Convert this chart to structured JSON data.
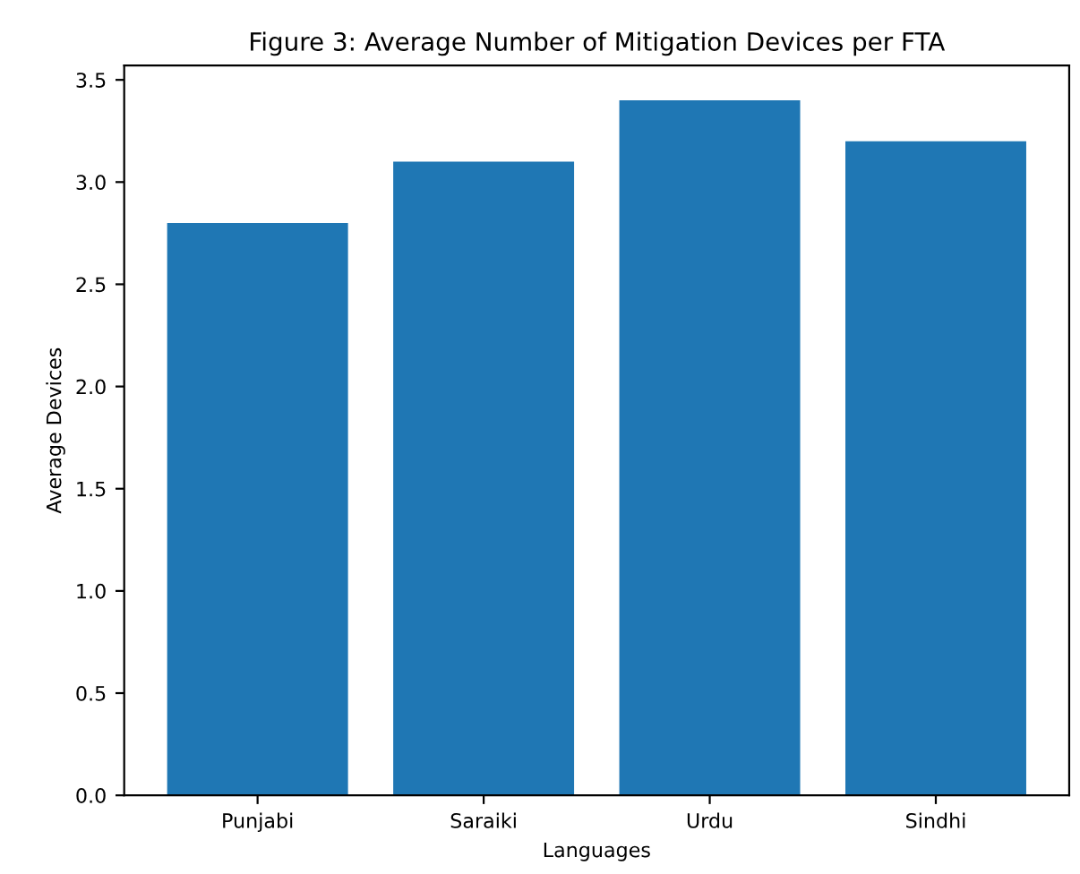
{
  "chart_data": {
    "type": "bar",
    "title": "Figure 3: Average Number of Mitigation Devices per FTA",
    "xlabel": "Languages",
    "ylabel": "Average Devices",
    "categories": [
      "Punjabi",
      "Saraiki",
      "Urdu",
      "Sindhi"
    ],
    "values": [
      2.8,
      3.1,
      3.4,
      3.2
    ],
    "color": "#1f77b4",
    "ylim": [
      0,
      3.57
    ],
    "yticks": [
      {
        "value": 0,
        "label": "0.0"
      },
      {
        "value": 0.5,
        "label": "0.5"
      },
      {
        "value": 1,
        "label": "1.0"
      },
      {
        "value": 1.5,
        "label": "1.5"
      },
      {
        "value": 2,
        "label": "2.0"
      },
      {
        "value": 2.5,
        "label": "2.5"
      },
      {
        "value": 3,
        "label": "3.0"
      },
      {
        "value": 3.5,
        "label": "3.5"
      }
    ],
    "grid": false
  }
}
